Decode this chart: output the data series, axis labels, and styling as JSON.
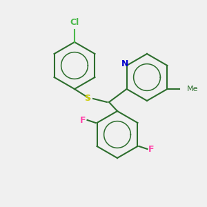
{
  "background_color": "#f0f0f0",
  "bond_color": "#2d6e2d",
  "atom_colors": {
    "Cl": "#4ab84a",
    "S": "#cccc00",
    "F_top": "#ff44aa",
    "F_bottom": "#ff44aa",
    "N": "#0000cc",
    "C": "#2d6e2d"
  },
  "atom_labels": {
    "Cl": "Cl",
    "S": "S",
    "F1": "F",
    "F2": "F",
    "N": "N",
    "Me": "Me"
  },
  "figsize": [
    3.0,
    3.0
  ],
  "dpi": 100
}
